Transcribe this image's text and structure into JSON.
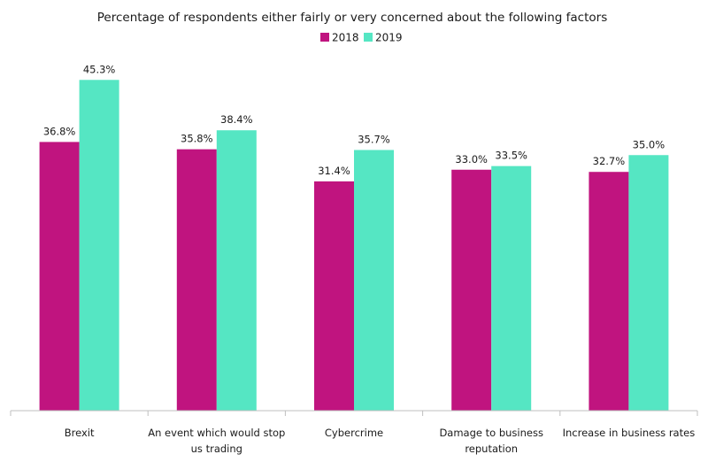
{
  "chart_data": {
    "type": "bar",
    "title": "Percentage of respondents either fairly or very concerned about the following factors",
    "categories": [
      [
        "Brexit"
      ],
      [
        "An event which would stop",
        "us trading"
      ],
      [
        "Cybercrime"
      ],
      [
        "Damage to business",
        "reputation"
      ],
      [
        "Increase in business rates"
      ]
    ],
    "series": [
      {
        "name": "2018",
        "color": "#c0147f",
        "values": [
          36.8,
          35.8,
          31.4,
          33.0,
          32.7
        ],
        "labels": [
          "36.8%",
          "35.8%",
          "31.4%",
          "33.0%",
          "32.7%"
        ]
      },
      {
        "name": "2019",
        "color": "#55e6c3",
        "values": [
          45.3,
          38.4,
          35.7,
          33.5,
          35.0
        ],
        "labels": [
          "45.3%",
          "38.4%",
          "35.7%",
          "33.5%",
          "35.0%"
        ]
      }
    ],
    "ylim": [
      0,
      50
    ],
    "legend_position": "top",
    "grid": false
  }
}
